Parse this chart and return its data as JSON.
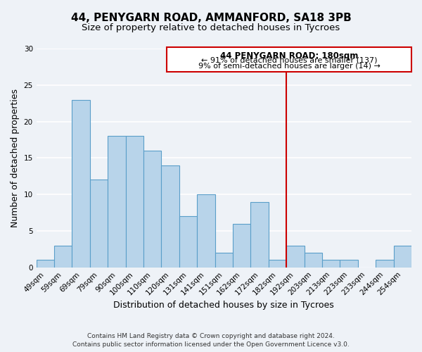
{
  "title": "44, PENYGARN ROAD, AMMANFORD, SA18 3PB",
  "subtitle": "Size of property relative to detached houses in Tycroes",
  "xlabel": "Distribution of detached houses by size in Tycroes",
  "ylabel": "Number of detached properties",
  "bar_labels": [
    "49sqm",
    "59sqm",
    "69sqm",
    "79sqm",
    "90sqm",
    "100sqm",
    "110sqm",
    "120sqm",
    "131sqm",
    "141sqm",
    "151sqm",
    "162sqm",
    "172sqm",
    "182sqm",
    "192sqm",
    "203sqm",
    "213sqm",
    "223sqm",
    "233sqm",
    "244sqm",
    "254sqm"
  ],
  "bar_values": [
    1,
    3,
    23,
    12,
    18,
    18,
    16,
    14,
    7,
    10,
    2,
    6,
    9,
    1,
    3,
    2,
    1,
    1,
    0,
    1,
    3
  ],
  "bar_color": "#b8d4ea",
  "bar_edge_color": "#5a9ec9",
  "ylim": [
    0,
    30
  ],
  "yticks": [
    0,
    5,
    10,
    15,
    20,
    25,
    30
  ],
  "vline_color": "#cc0000",
  "annotation_title": "44 PENYGARN ROAD: 180sqm",
  "annotation_line1": "← 91% of detached houses are smaller (137)",
  "annotation_line2": "9% of semi-detached houses are larger (14) →",
  "annotation_box_color": "#cc0000",
  "footer_line1": "Contains HM Land Registry data © Crown copyright and database right 2024.",
  "footer_line2": "Contains public sector information licensed under the Open Government Licence v3.0.",
  "background_color": "#eef2f7",
  "grid_color": "#ffffff",
  "title_fontsize": 11,
  "subtitle_fontsize": 9.5,
  "axis_label_fontsize": 9,
  "tick_fontsize": 7.5,
  "footer_fontsize": 6.5,
  "ann_title_fontsize": 8.5,
  "ann_text_fontsize": 8
}
